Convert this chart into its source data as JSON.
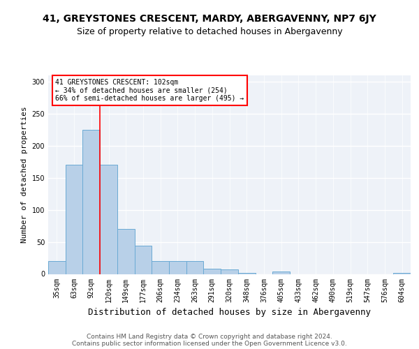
{
  "title1": "41, GREYSTONES CRESCENT, MARDY, ABERGAVENNY, NP7 6JY",
  "title2": "Size of property relative to detached houses in Abergavenny",
  "xlabel": "Distribution of detached houses by size in Abergavenny",
  "ylabel": "Number of detached properties",
  "categories": [
    "35sqm",
    "63sqm",
    "92sqm",
    "120sqm",
    "149sqm",
    "177sqm",
    "206sqm",
    "234sqm",
    "263sqm",
    "291sqm",
    "320sqm",
    "348sqm",
    "376sqm",
    "405sqm",
    "433sqm",
    "462sqm",
    "490sqm",
    "519sqm",
    "547sqm",
    "576sqm",
    "604sqm"
  ],
  "values": [
    20,
    170,
    225,
    170,
    70,
    44,
    20,
    20,
    20,
    8,
    7,
    2,
    0,
    4,
    0,
    0,
    0,
    0,
    0,
    0,
    2
  ],
  "bar_color": "#b8d0e8",
  "bar_edge_color": "#6aaad4",
  "red_line_x": 2.5,
  "annotation_text": "41 GREYSTONES CRESCENT: 102sqm\n← 34% of detached houses are smaller (254)\n66% of semi-detached houses are larger (495) →",
  "annotation_box_color": "white",
  "annotation_box_edge_color": "red",
  "footer_text": "Contains HM Land Registry data © Crown copyright and database right 2024.\nContains public sector information licensed under the Open Government Licence v3.0.",
  "ylim": [
    0,
    310
  ],
  "yticks": [
    0,
    50,
    100,
    150,
    200,
    250,
    300
  ],
  "bg_color": "#eef2f8",
  "grid_color": "white",
  "title1_fontsize": 10,
  "title2_fontsize": 9,
  "xlabel_fontsize": 9,
  "ylabel_fontsize": 8,
  "tick_fontsize": 7,
  "annot_fontsize": 7,
  "footer_fontsize": 6.5
}
